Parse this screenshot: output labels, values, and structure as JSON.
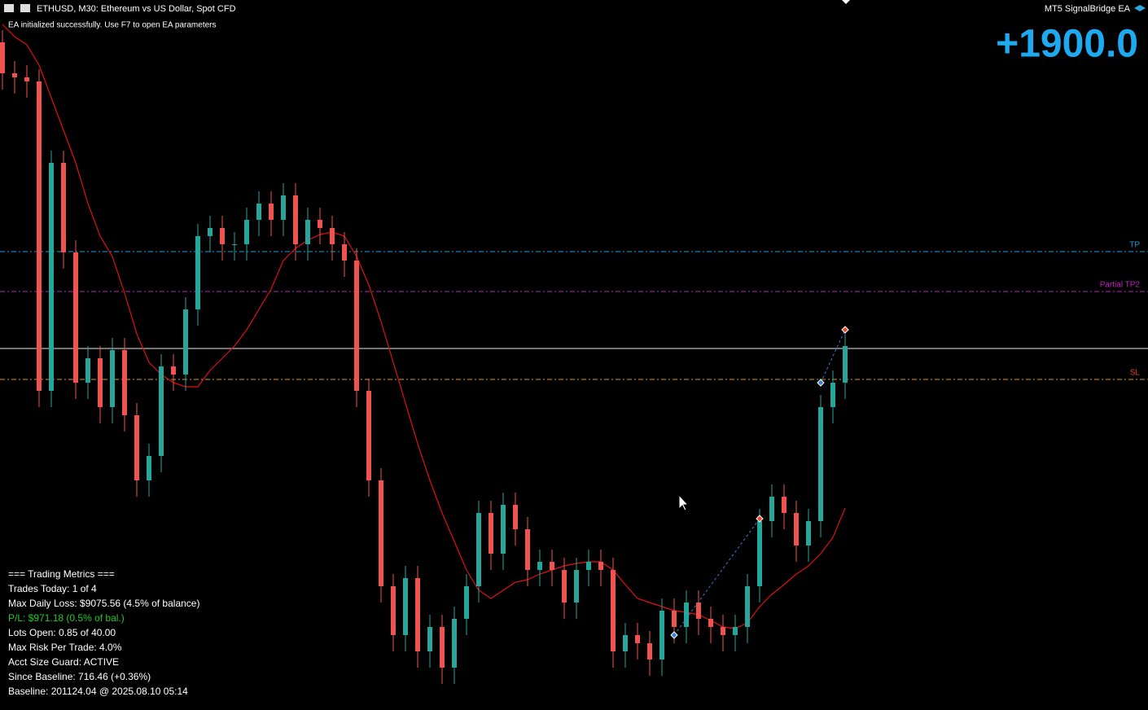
{
  "header": {
    "symbol": "ETHUSD, M30:  Ethereum vs US Dollar, Spot CFD",
    "ea_name": "MT5 SignalBridge EA",
    "status": "EA initialized successfully. Use F7 to open EA parameters",
    "profit": "+1900.0"
  },
  "chart_data": {
    "type": "candlestick",
    "ylim": [
      0,
      87.2
    ],
    "up_color": "#26a69a",
    "down_color": "#ef5350",
    "ma_color": "#e01010",
    "open": [
      82.0,
      78.2,
      77.7,
      77.2,
      39.2,
      67.2,
      56.2,
      40.2,
      43.2,
      37.2,
      44.2,
      36.2,
      28.2,
      31.2,
      42.2,
      41.2,
      49.2,
      58.2,
      59.2,
      57.2,
      57.2,
      60.2,
      62.2,
      60.2,
      63.2,
      57.2,
      60.2,
      59.2,
      57.2,
      55.2,
      39.2,
      28.2,
      15.2,
      9.2,
      16.2,
      7.2,
      10.2,
      5.2,
      11.2,
      15.2,
      24.2,
      19.2,
      25.2,
      22.2,
      17.2,
      18.2,
      17.2,
      13.2,
      17.2,
      18.2,
      17.2,
      7.2,
      9.2,
      8.2,
      6.2,
      12.2,
      10.2,
      13.2,
      11.2,
      10.2,
      9.2,
      10.2,
      15.2,
      23.2,
      26.2,
      24.2,
      20.2,
      23.2,
      37.2,
      40.2
    ],
    "high": [
      83.5,
      79.7,
      79.2,
      78.7,
      68.7,
      68.7,
      57.7,
      44.7,
      44.7,
      45.7,
      45.7,
      37.7,
      32.7,
      43.7,
      43.7,
      50.7,
      59.7,
      60.7,
      60.7,
      58.7,
      61.7,
      63.7,
      63.7,
      64.7,
      64.7,
      61.7,
      61.7,
      60.7,
      58.7,
      56.7,
      40.7,
      29.7,
      16.7,
      17.7,
      17.7,
      11.7,
      11.7,
      12.7,
      16.7,
      25.7,
      25.7,
      26.7,
      26.7,
      23.7,
      19.7,
      19.7,
      18.7,
      18.7,
      19.7,
      19.7,
      18.7,
      10.7,
      10.7,
      9.7,
      13.7,
      13.7,
      14.7,
      14.7,
      12.7,
      11.7,
      11.7,
      16.7,
      24.7,
      27.7,
      27.7,
      25.7,
      24.7,
      38.7,
      41.7,
      46.2
    ],
    "low": [
      76.2,
      75.7,
      75.2,
      37.2,
      37.2,
      54.2,
      38.2,
      38.2,
      35.2,
      35.2,
      34.2,
      26.2,
      26.2,
      29.2,
      39.2,
      39.2,
      47.2,
      56.2,
      55.2,
      55.2,
      55.2,
      58.2,
      58.2,
      58.2,
      55.2,
      55.2,
      57.2,
      55.2,
      53.2,
      37.2,
      26.2,
      13.2,
      7.2,
      7.2,
      5.2,
      5.2,
      3.2,
      3.2,
      9.2,
      13.2,
      17.2,
      17.2,
      20.2,
      15.2,
      15.2,
      15.2,
      11.2,
      11.2,
      15.2,
      15.2,
      5.2,
      5.2,
      6.2,
      4.2,
      4.2,
      8.2,
      8.2,
      9.2,
      8.2,
      7.2,
      7.2,
      8.2,
      13.2,
      21.2,
      22.2,
      18.2,
      18.2,
      21.2,
      35.2,
      38.2
    ],
    "close": [
      78.2,
      77.7,
      77.2,
      39.2,
      67.2,
      56.2,
      40.2,
      43.2,
      37.2,
      44.2,
      36.2,
      28.2,
      31.2,
      42.2,
      41.2,
      49.2,
      58.2,
      59.2,
      57.2,
      57.2,
      60.2,
      62.2,
      60.2,
      63.2,
      57.2,
      60.2,
      59.2,
      57.2,
      55.2,
      39.2,
      28.2,
      15.2,
      9.2,
      16.2,
      7.2,
      10.2,
      5.2,
      11.2,
      15.2,
      24.2,
      19.2,
      25.2,
      22.2,
      17.2,
      18.2,
      17.2,
      13.2,
      17.2,
      18.2,
      17.2,
      7.2,
      9.2,
      8.2,
      6.2,
      12.2,
      10.2,
      13.2,
      11.2,
      10.2,
      9.2,
      10.2,
      15.2,
      23.2,
      26.2,
      24.2,
      20.2,
      23.2,
      37.2,
      40.2,
      44.7
    ],
    "ma": [
      84.2,
      82.7,
      81.7,
      79.2,
      75.2,
      71.2,
      67.2,
      62.2,
      58.2,
      55.7,
      51.2,
      46.2,
      42.7,
      41.2,
      40.2,
      39.7,
      39.7,
      41.7,
      43.2,
      44.7,
      46.7,
      49.2,
      51.7,
      55.2,
      56.7,
      57.7,
      58.4,
      58.7,
      58.2,
      55.7,
      52.2,
      47.7,
      42.7,
      37.7,
      32.7,
      28.2,
      24.2,
      20.7,
      17.2,
      14.7,
      13.7,
      14.7,
      15.7,
      16.0,
      16.7,
      17.2,
      17.7,
      18.0,
      18.2,
      18.2,
      17.2,
      15.4,
      13.7,
      13.2,
      12.7,
      12.2,
      12.0,
      11.7,
      11.0,
      10.2,
      10.0,
      10.7,
      12.7,
      14.2,
      15.4,
      16.7,
      17.7,
      19.2,
      21.2,
      24.8
    ],
    "levels": [
      {
        "name": "TP",
        "value": 56.3,
        "color": "#1e9bd7"
      },
      {
        "name": "Partial TP2",
        "value": 51.4,
        "color": "#c020c0"
      },
      {
        "value": 44.4,
        "color": "#9a9a9a"
      },
      {
        "name": "SL",
        "value": 40.6,
        "color": "#d4a017",
        "label_color": "#e8402a"
      }
    ],
    "trades": [
      {
        "open_index": 55,
        "open_price": 9.2,
        "close_index": 62,
        "close_price": 23.5
      },
      {
        "open_index": 67,
        "open_price": 40.2,
        "close_index": 69,
        "close_price": 46.7
      }
    ]
  },
  "metrics": {
    "title": "=== Trading Metrics ===",
    "lines": [
      {
        "text": "Trades Today: 1 of 4",
        "color": "#ffffff"
      },
      {
        "text": "Max Daily Loss: $9075.56 (4.5% of balance)",
        "color": "#ffffff"
      },
      {
        "text": "P/L: $971.18 (0.5% of bal.)",
        "color": "#22cc22"
      },
      {
        "text": "Lots Open: 0.85 of 40.00",
        "color": "#ffffff"
      },
      {
        "text": "Max Risk Per Trade: 4.0%",
        "color": "#ffffff"
      },
      {
        "text": "Acct Size Guard: ACTIVE",
        "color": "#ffffff"
      },
      {
        "text": "Since Baseline: 716.46 (+0.36%)",
        "color": "#ffffff"
      },
      {
        "text": "Baseline: 201124.04 @ 2025.08.10 05:14",
        "color": "#ffffff"
      }
    ]
  }
}
